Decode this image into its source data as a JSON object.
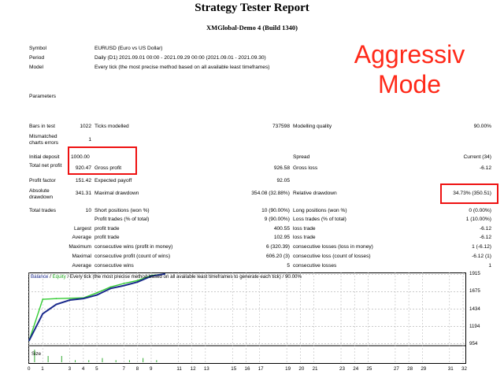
{
  "report": {
    "title": "Strategy Tester Report",
    "subtitle": "XMGlobal-Demo 4 (Build 1340)"
  },
  "overlay_text": "Aggressiv Mode",
  "info": {
    "symbol_label": "Symbol",
    "symbol": "EURUSD (Euro vs US Dollar)",
    "period_label": "Period",
    "period": "Daily (D1) 2021.09.01 00:00 - 2021.09.29 00:00 (2021.09.01 - 2021.09.30)",
    "model_label": "Model",
    "model": "Every tick (the most precise method based on all available least timeframes)",
    "parameters_label": "Parameters"
  },
  "stats": {
    "bars_label": "Bars in test",
    "bars": "1022",
    "ticks_label": "Ticks modelled",
    "ticks": "737598",
    "quality_label": "Modelling quality",
    "quality": "90.00%",
    "mismatched_label": "Mismatched charts errors",
    "mismatched": "1",
    "deposit_label": "Initial deposit",
    "deposit": "1000.00",
    "spread_label": "Spread",
    "spread": "Current (34)",
    "net_label": "Total net profit",
    "net": "920.47",
    "gross_profit_label": "Gross profit",
    "gross_profit": "926.58",
    "gross_loss_label": "Gross loss",
    "gross_loss": "-6.12",
    "pf_label": "Profit factor",
    "pf": "151.42",
    "ep_label": "Expected payoff",
    "ep": "92.05",
    "abs_dd_label": "Absolute drawdown",
    "abs_dd": "341.31",
    "max_dd_label": "Maximal drawdown",
    "max_dd": "354.08 (32.88%)",
    "rel_dd_label": "Relative drawdown",
    "rel_dd": "34.73% (350.51)",
    "trades_label": "Total trades",
    "trades": "10",
    "short_label": "Short positions (won %)",
    "short": "10 (90.00%)",
    "long_label": "Long positions (won %)",
    "long": "0 (0.00%)",
    "pt_label": "Profit trades (% of total)",
    "pt": "9 (90.00%)",
    "lt_label": "Loss trades (% of total)",
    "lt": "1 (10.00%)",
    "largest": "Largest",
    "average": "Average",
    "maximum": "Maximum",
    "maximal": "Maximal",
    "profit_trade_label": "profit trade",
    "lpt": "400.55",
    "apt": "102.95",
    "loss_trade_label": "loss trade",
    "llt": "-6.12",
    "alt": "-6.12",
    "mcw_label": "consecutive wins (profit in money)",
    "mcw": "6 (320.39)",
    "mcl_label": "consecutive losses (loss in money)",
    "mcl": "1 (-6.12)",
    "mcp_label": "consecutive profit (count of wins)",
    "mcp": "606.20 (3)",
    "mcloss_label": "consecutive loss (count of losses)",
    "mcloss": "-6.12 (1)",
    "acw_label": "consecutive wins",
    "acw": "5",
    "acl_label": "consecutive losses",
    "acl": "1"
  },
  "chart_legend": {
    "balance": "Balance",
    "sep": " / ",
    "equity": "Equity",
    "desc": " / Every tick (the most precise method based on all available least timeframes to generate each tick)  / 90.00%"
  },
  "chart_data": {
    "type": "line",
    "x": [
      0,
      1,
      2,
      3,
      4,
      5,
      6,
      7,
      8,
      9,
      10
    ],
    "series": [
      {
        "name": "Balance",
        "color": "#1a2a8c",
        "values": [
          1000,
          1370,
          1500,
          1560,
          1580,
          1630,
          1720,
          1760,
          1810,
          1890,
          1920
        ]
      },
      {
        "name": "Equity",
        "color": "#33cc33",
        "values": [
          1000,
          1570,
          1580,
          1585,
          1590,
          1660,
          1740,
          1790,
          1830,
          1900,
          1920
        ]
      }
    ],
    "y_ticks": [
      "1915",
      "1675",
      "1434",
      "1194",
      "954"
    ],
    "x_ticks": [
      "0",
      "1",
      "3",
      "4",
      "5",
      "7",
      "8",
      "9",
      "11",
      "12",
      "13",
      "15",
      "16",
      "17",
      "19",
      "20",
      "21",
      "23",
      "24",
      "25",
      "27",
      "28",
      "29",
      "31",
      "32"
    ],
    "size_label": "Size",
    "size_values": [
      6,
      3,
      3,
      1,
      1,
      2,
      1,
      1,
      2,
      1
    ],
    "ylim": [
      940,
      1930
    ],
    "grid": true
  }
}
